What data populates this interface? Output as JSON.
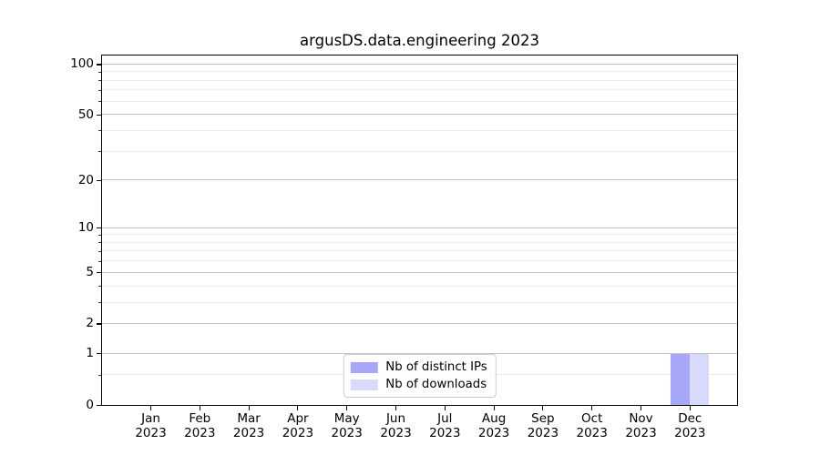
{
  "chart_data": {
    "type": "bar",
    "title": "argusDS.data.engineering 2023",
    "categories": [
      "Jan 2023",
      "Feb 2023",
      "Mar 2023",
      "Apr 2023",
      "May 2023",
      "Jun 2023",
      "Jul 2023",
      "Aug 2023",
      "Sep 2023",
      "Oct 2023",
      "Nov 2023",
      "Dec 2023"
    ],
    "x_labels": [
      {
        "month": "Jan",
        "year": "2023"
      },
      {
        "month": "Feb",
        "year": "2023"
      },
      {
        "month": "Mar",
        "year": "2023"
      },
      {
        "month": "Apr",
        "year": "2023"
      },
      {
        "month": "May",
        "year": "2023"
      },
      {
        "month": "Jun",
        "year": "2023"
      },
      {
        "month": "Jul",
        "year": "2023"
      },
      {
        "month": "Aug",
        "year": "2023"
      },
      {
        "month": "Sep",
        "year": "2023"
      },
      {
        "month": "Oct",
        "year": "2023"
      },
      {
        "month": "Nov",
        "year": "2023"
      },
      {
        "month": "Dec",
        "year": "2023"
      }
    ],
    "series": [
      {
        "name": "Nb of distinct IPs",
        "color": "#a7a7f9",
        "values": [
          0,
          0,
          0,
          0,
          0,
          0,
          0,
          0,
          0,
          0,
          0,
          1
        ]
      },
      {
        "name": "Nb of downloads",
        "color": "#d9d9fb",
        "values": [
          0,
          0,
          0,
          0,
          0,
          0,
          0,
          0,
          0,
          0,
          0,
          1
        ]
      }
    ],
    "xlabel": "",
    "ylabel": "",
    "yscale": "log1p",
    "ylim": [
      0,
      113
    ],
    "yticks": [
      0,
      1,
      2,
      5,
      10,
      20,
      50,
      100
    ],
    "yticks_minor": [
      0.5,
      3,
      4,
      6,
      7,
      8,
      9,
      30,
      40,
      60,
      70,
      80,
      90
    ],
    "grid": true,
    "legend_position": "lower center"
  }
}
